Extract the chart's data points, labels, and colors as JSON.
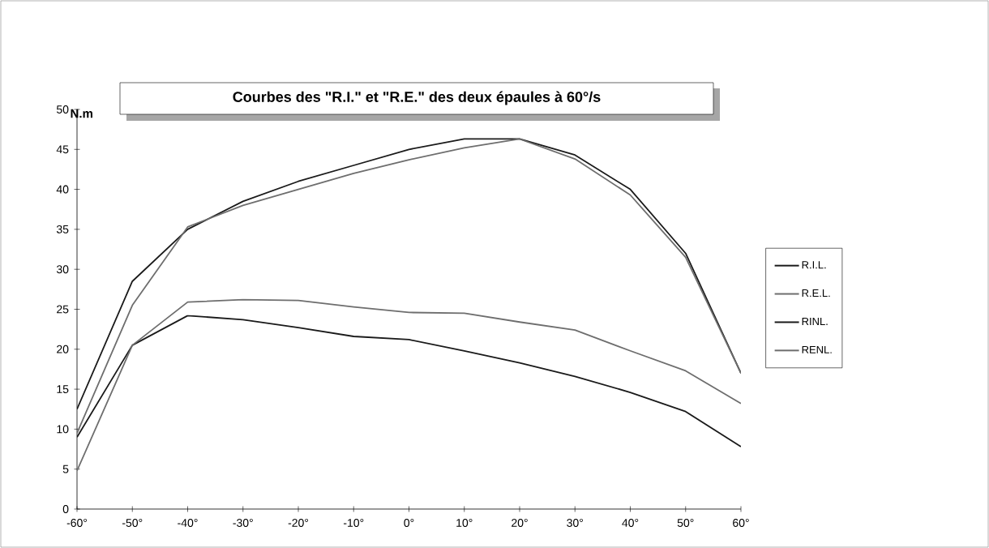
{
  "chart_data": {
    "type": "line",
    "title": "Courbes des \"R.I.\" et \"R.E.\" des deux épaules à 60°/s",
    "ylabel": "N.m",
    "categories": [
      "-60°",
      "-50°",
      "-40°",
      "-30°",
      "-20°",
      "-10°",
      "0°",
      "10°",
      "20°",
      "30°",
      "40°",
      "50°",
      "60°"
    ],
    "series": [
      {
        "name": "R.I.L.",
        "color": "#1a1a1a",
        "values": [
          12.5,
          28.5,
          35,
          38.5,
          41,
          43,
          45,
          46.3,
          46.3,
          44.3,
          40,
          32,
          17
        ]
      },
      {
        "name": "R.E.L.",
        "color": "#6e6e6e",
        "values": [
          9.5,
          25.5,
          35.3,
          38,
          40,
          42,
          43.7,
          45.2,
          46.3,
          43.8,
          39.3,
          31.5,
          17
        ]
      },
      {
        "name": "RINL.",
        "color": "#1a1a1a",
        "values": [
          9,
          20.5,
          24.2,
          23.7,
          22.7,
          21.6,
          21.2,
          19.8,
          18.3,
          16.6,
          14.6,
          12.2,
          7.8
        ]
      },
      {
        "name": "RENL.",
        "color": "#6e6e6e",
        "values": [
          4.8,
          20.5,
          25.9,
          26.2,
          26.1,
          25.3,
          24.6,
          24.5,
          23.4,
          22.4,
          19.8,
          17.3,
          13.2
        ]
      }
    ],
    "ylim": [
      0,
      50
    ],
    "yticks": [
      0,
      5,
      10,
      15,
      20,
      25,
      30,
      35,
      40,
      45,
      50
    ],
    "grid": false,
    "legend": "right",
    "marker": "none",
    "line_style": "solid"
  }
}
